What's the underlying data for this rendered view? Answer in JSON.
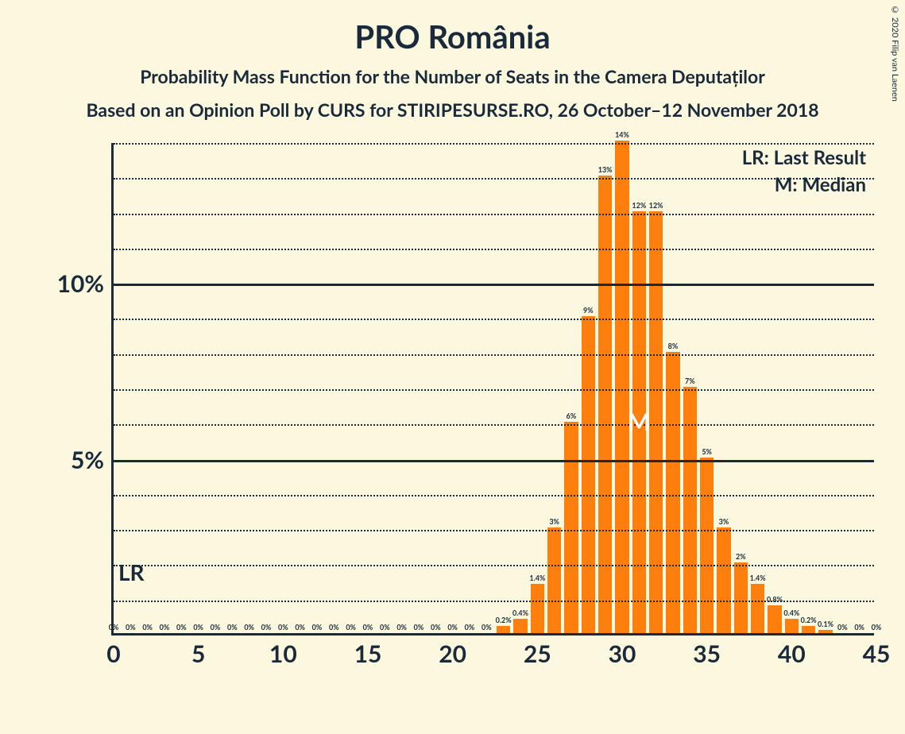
{
  "title": "PRO România",
  "title_fontsize": 40,
  "subtitle1": "Probability Mass Function for the Number of Seats in the Camera Deputaților",
  "subtitle2": "Based on an Opinion Poll by CURS for STIRIPESURSE.RO, 26 October–12 November 2018",
  "subtitle_fontsize": 23,
  "copyright": "© 2020 Filip van Laenen",
  "background_color": "#fbf8df",
  "text_color": "#1a2a3a",
  "chart": {
    "type": "bar",
    "bar_color": "#ff7f0e",
    "bar_width_ratio": 0.82,
    "x_min": 0,
    "x_max": 45,
    "x_ticks": [
      0,
      5,
      10,
      15,
      20,
      25,
      30,
      35,
      40,
      45
    ],
    "x_tick_fontsize": 30,
    "y_min": 0,
    "y_max": 14,
    "y_major_ticks": [
      5,
      10
    ],
    "y_major_labels": [
      "5%",
      "10%"
    ],
    "y_tick_fontsize": 30,
    "y_minor_step": 1,
    "grid_major_color": "#1a2a3a",
    "grid_minor_style": "dotted",
    "bars": [
      {
        "x": 0,
        "v": 0,
        "label": "0%"
      },
      {
        "x": 1,
        "v": 0,
        "label": "0%"
      },
      {
        "x": 2,
        "v": 0,
        "label": "0%"
      },
      {
        "x": 3,
        "v": 0,
        "label": "0%"
      },
      {
        "x": 4,
        "v": 0,
        "label": "0%"
      },
      {
        "x": 5,
        "v": 0,
        "label": "0%"
      },
      {
        "x": 6,
        "v": 0,
        "label": "0%"
      },
      {
        "x": 7,
        "v": 0,
        "label": "0%"
      },
      {
        "x": 8,
        "v": 0,
        "label": "0%"
      },
      {
        "x": 9,
        "v": 0,
        "label": "0%"
      },
      {
        "x": 10,
        "v": 0,
        "label": "0%"
      },
      {
        "x": 11,
        "v": 0,
        "label": "0%"
      },
      {
        "x": 12,
        "v": 0,
        "label": "0%"
      },
      {
        "x": 13,
        "v": 0,
        "label": "0%"
      },
      {
        "x": 14,
        "v": 0,
        "label": "0%"
      },
      {
        "x": 15,
        "v": 0,
        "label": "0%"
      },
      {
        "x": 16,
        "v": 0,
        "label": "0%"
      },
      {
        "x": 17,
        "v": 0,
        "label": "0%"
      },
      {
        "x": 18,
        "v": 0,
        "label": "0%"
      },
      {
        "x": 19,
        "v": 0,
        "label": "0%"
      },
      {
        "x": 20,
        "v": 0,
        "label": "0%"
      },
      {
        "x": 21,
        "v": 0,
        "label": "0%"
      },
      {
        "x": 22,
        "v": 0,
        "label": "0%"
      },
      {
        "x": 23,
        "v": 0.2,
        "label": "0.2%"
      },
      {
        "x": 24,
        "v": 0.4,
        "label": "0.4%"
      },
      {
        "x": 25,
        "v": 1.4,
        "label": "1.4%"
      },
      {
        "x": 26,
        "v": 3,
        "label": "3%"
      },
      {
        "x": 27,
        "v": 6,
        "label": "6%"
      },
      {
        "x": 28,
        "v": 9,
        "label": "9%"
      },
      {
        "x": 29,
        "v": 13,
        "label": "13%"
      },
      {
        "x": 30,
        "v": 14,
        "label": "14%"
      },
      {
        "x": 31,
        "v": 12,
        "label": "12%"
      },
      {
        "x": 32,
        "v": 12,
        "label": "12%"
      },
      {
        "x": 33,
        "v": 8,
        "label": "8%"
      },
      {
        "x": 34,
        "v": 7,
        "label": "7%"
      },
      {
        "x": 35,
        "v": 5,
        "label": "5%"
      },
      {
        "x": 36,
        "v": 3,
        "label": "3%"
      },
      {
        "x": 37,
        "v": 2,
        "label": "2%"
      },
      {
        "x": 38,
        "v": 1.4,
        "label": "1.4%"
      },
      {
        "x": 39,
        "v": 0.8,
        "label": "0.8%"
      },
      {
        "x": 40,
        "v": 0.4,
        "label": "0.4%"
      },
      {
        "x": 41,
        "v": 0.2,
        "label": "0.2%"
      },
      {
        "x": 42,
        "v": 0.1,
        "label": "0.1%"
      },
      {
        "x": 43,
        "v": 0,
        "label": "0%"
      },
      {
        "x": 44,
        "v": 0,
        "label": "0%"
      },
      {
        "x": 45,
        "v": 0,
        "label": "0%"
      }
    ],
    "legend": {
      "lr": "LR: Last Result",
      "m": "M: Median",
      "fontsize": 24
    },
    "lr_marker": {
      "x": 0,
      "label": "LR",
      "fontsize": 28
    },
    "m_marker": {
      "x": 31,
      "label": "M",
      "fontsize": 30
    }
  }
}
